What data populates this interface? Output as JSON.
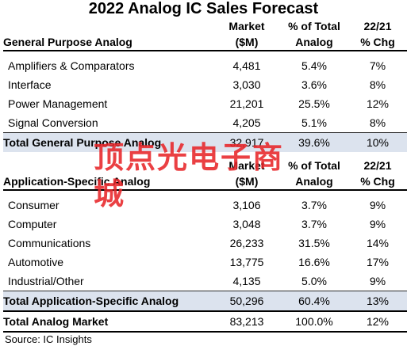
{
  "title": "2022 Analog IC Sales Forecast",
  "columns": {
    "market_line1": "Market",
    "market_line2": "($M)",
    "pct_line1": "% of Total",
    "pct_line2": "Analog",
    "chg_line1": "22/21",
    "chg_line2": "% Chg"
  },
  "general_purpose": {
    "section_label": "General Purpose Analog",
    "rows": [
      {
        "label": "Amplifiers & Comparators",
        "market": "4,481",
        "pct": "5.4%",
        "chg": "7%"
      },
      {
        "label": "Interface",
        "market": "3,030",
        "pct": "3.6%",
        "chg": "8%"
      },
      {
        "label": "Power Management",
        "market": "21,201",
        "pct": "25.5%",
        "chg": "12%"
      },
      {
        "label": "Signal Conversion",
        "market": "4,205",
        "pct": "5.1%",
        "chg": "8%"
      }
    ],
    "total": {
      "label": "Total General Purpose Analog",
      "market": "32,917",
      "pct": "39.6%",
      "chg": "10%"
    }
  },
  "application_specific": {
    "section_label": "Application-Specific Analog",
    "rows": [
      {
        "label": "Consumer",
        "market": "3,106",
        "pct": "3.7%",
        "chg": "9%"
      },
      {
        "label": "Computer",
        "market": "3,048",
        "pct": "3.7%",
        "chg": "9%"
      },
      {
        "label": "Communications",
        "market": "26,233",
        "pct": "31.5%",
        "chg": "14%"
      },
      {
        "label": "Automotive",
        "market": "13,775",
        "pct": "16.6%",
        "chg": "17%"
      },
      {
        "label": "Industrial/Other",
        "market": "4,135",
        "pct": "5.0%",
        "chg": "9%"
      }
    ],
    "total": {
      "label": "Total Application-Specific Analog",
      "market": "50,296",
      "pct": "60.4%",
      "chg": "13%"
    }
  },
  "grand_total": {
    "label": "Total Analog Market",
    "market": "83,213",
    "pct": "100.0%",
    "chg": "12%"
  },
  "source": "Source:  IC Insights",
  "watermark": "顶点光电子商城",
  "colors": {
    "total_row_shade": "#dce3ee",
    "watermark": "#e8262a"
  }
}
